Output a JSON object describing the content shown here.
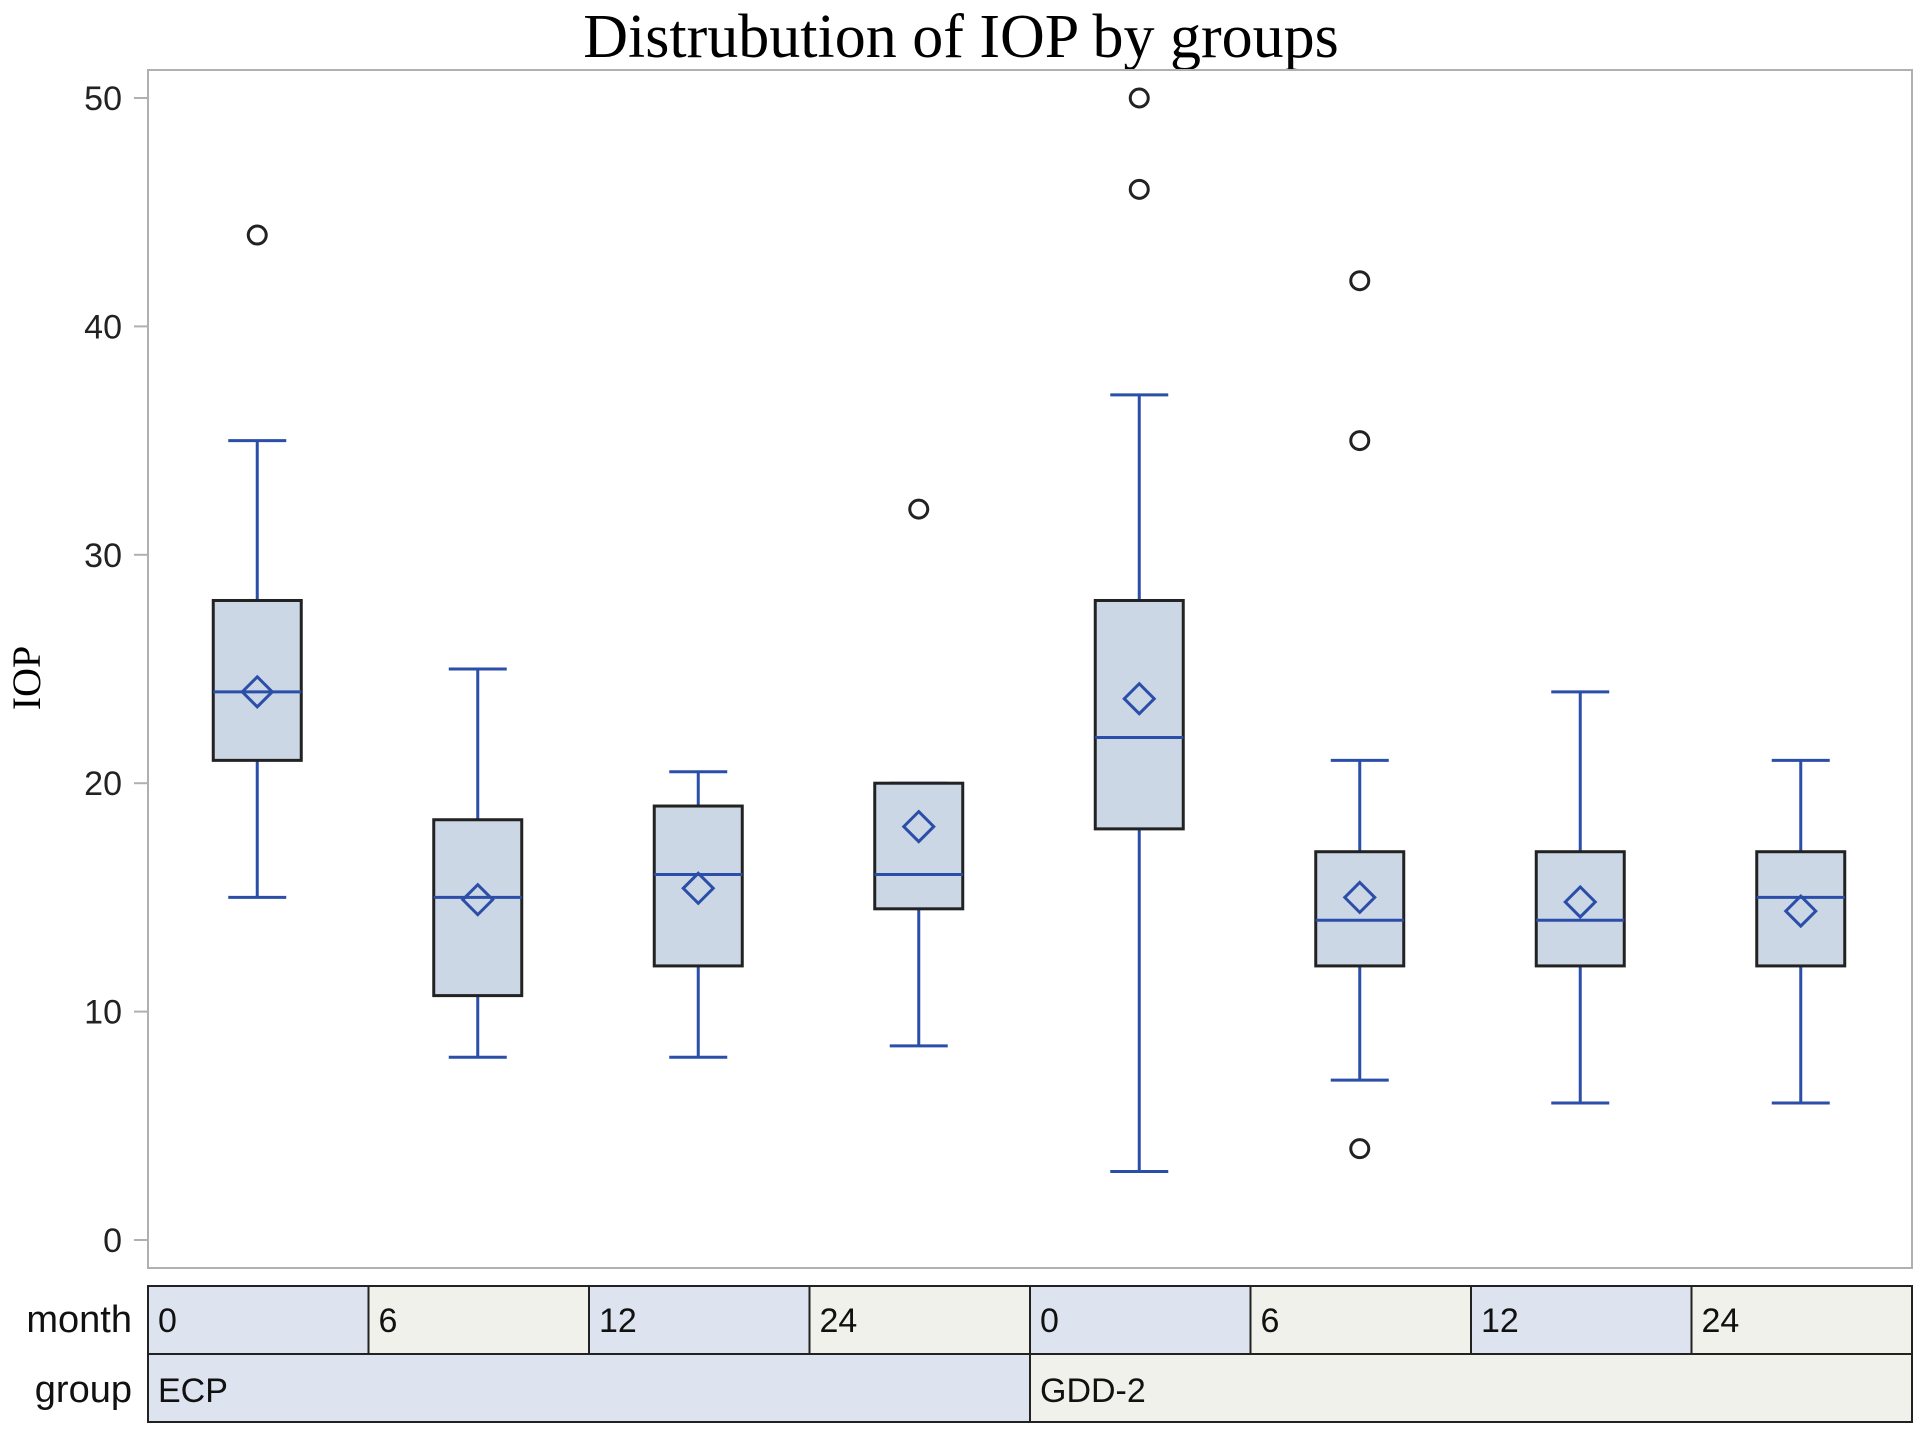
{
  "chart_data": {
    "type": "box",
    "title": "Distrubution of IOP by groups",
    "ylabel": "IOP",
    "ylim": [
      0,
      52
    ],
    "yticks": [
      0,
      10,
      20,
      30,
      40,
      50
    ],
    "grid": false,
    "table_rows": [
      {
        "label": "month",
        "cells": [
          "0",
          "6",
          "12",
          "24",
          "0",
          "6",
          "12",
          "24"
        ]
      },
      {
        "label": "group",
        "cells": [
          "ECP",
          "GDD-2"
        ]
      }
    ],
    "boxes": [
      {
        "group": "ECP",
        "month": "0",
        "whisker_low": 15,
        "q1": 21,
        "median": 24,
        "q3": 28,
        "whisker_high": 35,
        "mean": 24,
        "outliers": [
          44
        ]
      },
      {
        "group": "ECP",
        "month": "6",
        "whisker_low": 8,
        "q1": 10.7,
        "median": 15,
        "q3": 18.4,
        "whisker_high": 25,
        "mean": 14.9,
        "outliers": []
      },
      {
        "group": "ECP",
        "month": "12",
        "whisker_low": 8,
        "q1": 12,
        "median": 16,
        "q3": 19,
        "whisker_high": 20.5,
        "mean": 15.4,
        "outliers": []
      },
      {
        "group": "ECP",
        "month": "24",
        "whisker_low": 8.5,
        "q1": 14.5,
        "median": 16,
        "q3": 20,
        "whisker_high": 20,
        "mean": 18.1,
        "outliers": [
          32
        ]
      },
      {
        "group": "GDD-2",
        "month": "0",
        "whisker_low": 3,
        "q1": 18,
        "median": 22,
        "q3": 28,
        "whisker_high": 37,
        "mean": 23.7,
        "outliers": [
          46,
          50
        ]
      },
      {
        "group": "GDD-2",
        "month": "6",
        "whisker_low": 7,
        "q1": 12,
        "median": 14,
        "q3": 17,
        "whisker_high": 21,
        "mean": 15,
        "outliers": [
          4,
          35,
          42
        ]
      },
      {
        "group": "GDD-2",
        "month": "12",
        "whisker_low": 6,
        "q1": 12,
        "median": 14,
        "q3": 17,
        "whisker_high": 24,
        "mean": 14.8,
        "outliers": []
      },
      {
        "group": "GDD-2",
        "month": "24",
        "whisker_low": 6,
        "q1": 12,
        "median": 15,
        "q3": 17,
        "whisker_high": 21,
        "mean": 14.4,
        "outliers": []
      }
    ],
    "colors": {
      "box_fill": "#ccd7e6",
      "box_edge": "#222222",
      "whisker": "#2b4ea8",
      "median": "#2b4ea8",
      "mean_marker": "#2b4ea8",
      "outlier": "#222222",
      "axis": "#b0b0b0",
      "cell_fill_blue": "#dde3ef",
      "cell_fill_gray": "#f1f1ec"
    }
  }
}
